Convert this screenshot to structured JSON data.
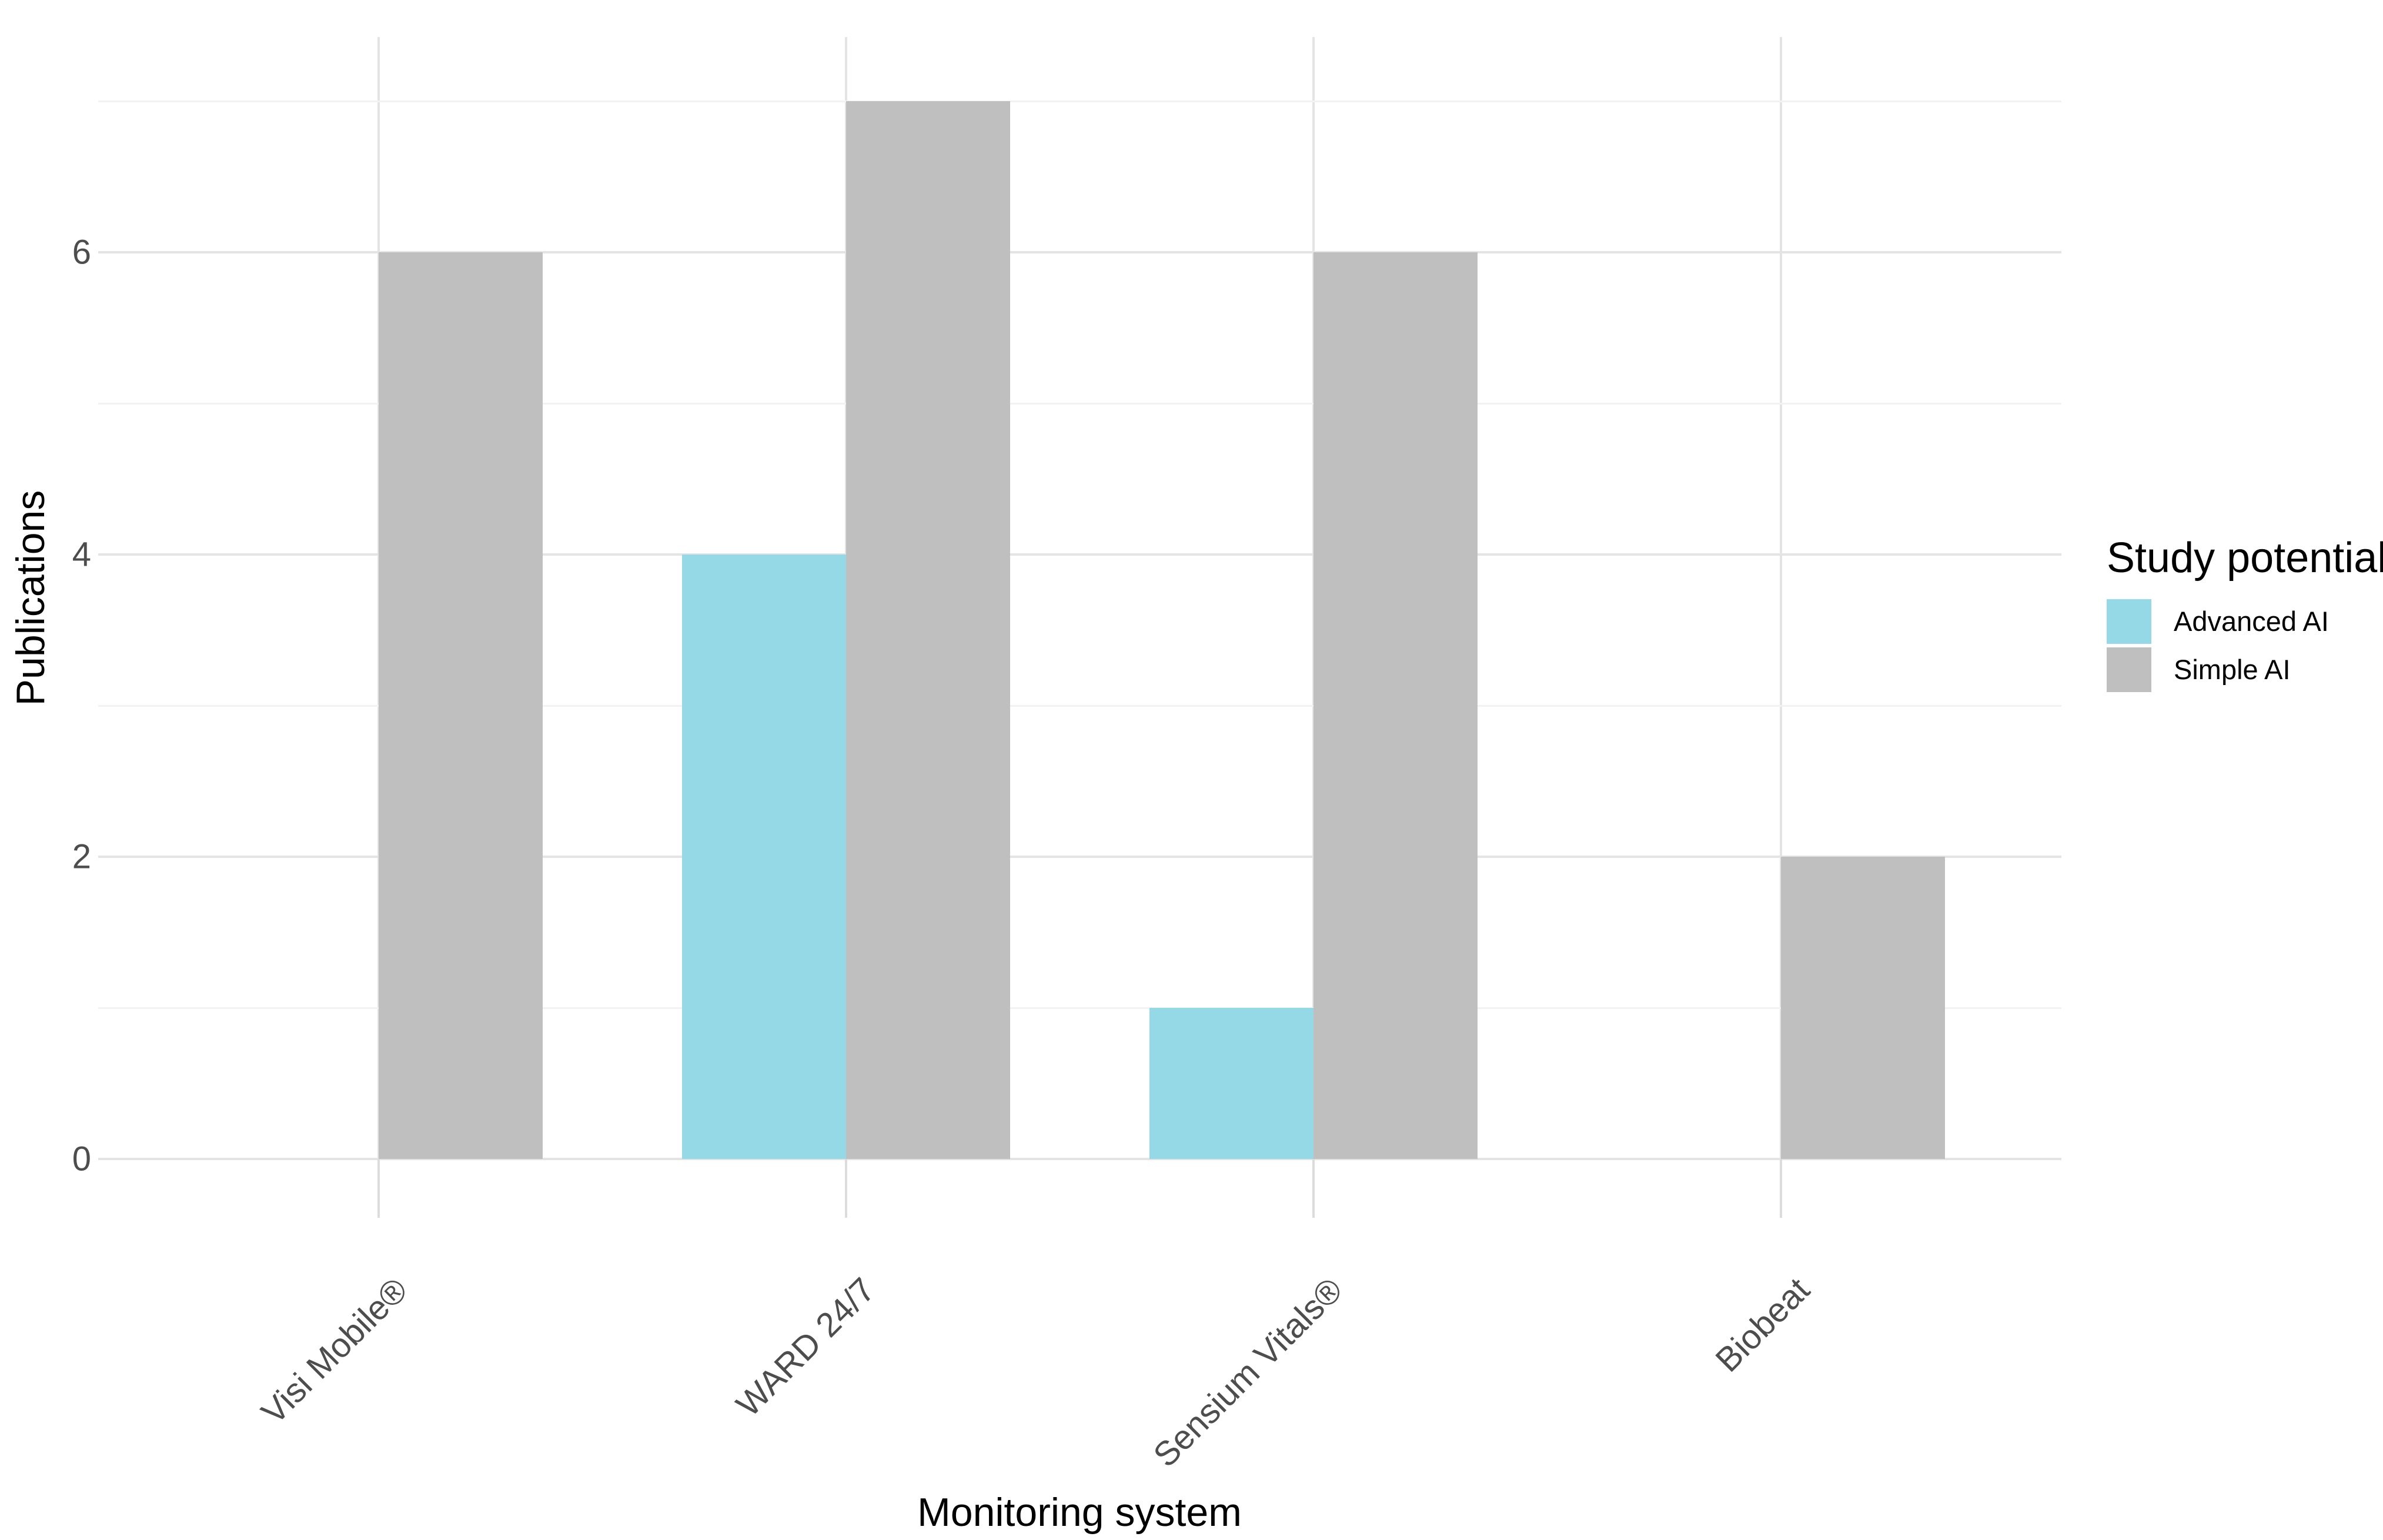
{
  "chart_data": {
    "type": "bar",
    "orientation": "vertical-grouped",
    "title": "",
    "categories": [
      "Visi Mobile®",
      "WARD 24/7",
      "Sensium Vitals®",
      "Biobeat"
    ],
    "series": [
      {
        "name": "Advanced AI",
        "color": "#96D9E6",
        "values": [
          0,
          4,
          1,
          0
        ]
      },
      {
        "name": "Simple AI",
        "color": "#BFBFBF",
        "values": [
          6,
          7,
          6,
          2
        ]
      }
    ],
    "xlabel": "Monitoring system",
    "ylabel": "Publications",
    "y_ticks": [
      0,
      2,
      4,
      6
    ],
    "minor_gridlines": [
      1,
      3,
      5,
      7
    ],
    "ylim": [
      0,
      7.42
    ],
    "grid": "horizontal major+minor, vertical major at category centers",
    "legend": {
      "title": "Study potential",
      "position": "right"
    }
  },
  "colors": {
    "background": "#FFFFFF",
    "bar_advanced": "#96D9E6",
    "bar_simple": "#BFBFBF",
    "grid_major": "#E4E4E4",
    "grid_minor": "#F2F2F2",
    "axis_tick": "#DCDCDC",
    "axis_text": "#4D4D4D",
    "title_text": "#000000"
  }
}
